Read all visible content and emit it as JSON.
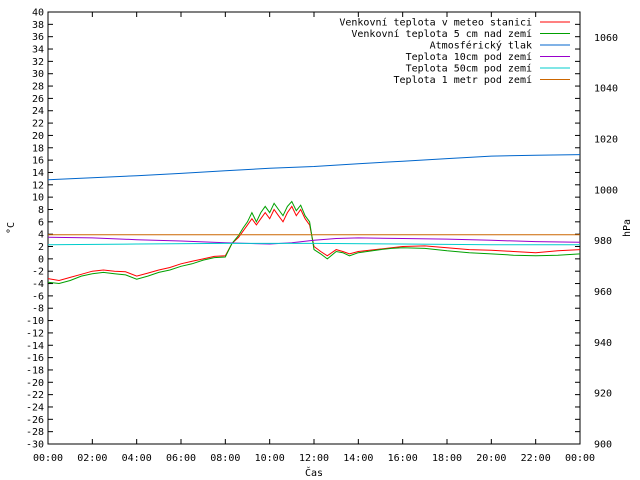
{
  "chart_data": {
    "type": "line",
    "xlabel": "Čas",
    "ylabel_left": "°C",
    "ylabel_right": "hPa",
    "x_ticks": [
      "00:00",
      "02:00",
      "04:00",
      "06:00",
      "08:00",
      "10:00",
      "12:00",
      "14:00",
      "16:00",
      "18:00",
      "20:00",
      "22:00",
      "00:00"
    ],
    "ylim_left": [
      -30,
      40
    ],
    "ylim_right": [
      900,
      1070
    ],
    "y_left_ticks": [
      40,
      38,
      36,
      34,
      32,
      30,
      28,
      26,
      24,
      22,
      20,
      18,
      16,
      14,
      12,
      10,
      8,
      6,
      4,
      2,
      0,
      -2,
      -4,
      -6,
      -8,
      -10,
      -12,
      -14,
      -16,
      -18,
      -20,
      -22,
      -24,
      -26,
      -28,
      -30
    ],
    "y_right_ticks": [
      1060,
      1040,
      1020,
      1000,
      980,
      960,
      940,
      920,
      900
    ],
    "legend_position": "top-right",
    "grid": false,
    "series": [
      {
        "name": "Venkovní teplota v meteo stanici",
        "color": "#ff0000",
        "axis": "left",
        "points": [
          [
            0,
            -3.2
          ],
          [
            0.5,
            -3.5
          ],
          [
            1,
            -3
          ],
          [
            1.5,
            -2.5
          ],
          [
            2,
            -2
          ],
          [
            2.5,
            -1.8
          ],
          [
            3,
            -2
          ],
          [
            3.5,
            -2.1
          ],
          [
            4,
            -2.8
          ],
          [
            4.5,
            -2.3
          ],
          [
            5,
            -1.8
          ],
          [
            5.5,
            -1.4
          ],
          [
            6,
            -0.8
          ],
          [
            6.5,
            -0.4
          ],
          [
            7,
            0
          ],
          [
            7.5,
            0.4
          ],
          [
            8,
            0.5
          ],
          [
            8.3,
            2.5
          ],
          [
            8.6,
            3.5
          ],
          [
            8.8,
            4.5
          ],
          [
            9,
            5.5
          ],
          [
            9.2,
            6.5
          ],
          [
            9.4,
            5.5
          ],
          [
            9.6,
            6.5
          ],
          [
            9.8,
            7.5
          ],
          [
            10,
            6.5
          ],
          [
            10.2,
            8
          ],
          [
            10.4,
            7
          ],
          [
            10.6,
            6
          ],
          [
            10.8,
            7.5
          ],
          [
            11,
            8.5
          ],
          [
            11.2,
            7
          ],
          [
            11.4,
            8
          ],
          [
            11.6,
            6.5
          ],
          [
            11.8,
            5.5
          ],
          [
            12,
            2
          ],
          [
            12.3,
            1.2
          ],
          [
            12.6,
            0.5
          ],
          [
            13,
            1.5
          ],
          [
            13.3,
            1.2
          ],
          [
            13.6,
            0.8
          ],
          [
            14,
            1.2
          ],
          [
            15,
            1.6
          ],
          [
            15.5,
            1.8
          ],
          [
            16,
            2
          ],
          [
            17,
            2.1
          ],
          [
            18,
            1.8
          ],
          [
            19,
            1.5
          ],
          [
            20,
            1.4
          ],
          [
            21,
            1.2
          ],
          [
            22,
            1
          ],
          [
            23,
            1.3
          ],
          [
            24,
            1.5
          ]
        ]
      },
      {
        "name": "Venkovní teplota 5 cm nad zemí",
        "color": "#00a000",
        "axis": "left",
        "points": [
          [
            0,
            -3.8
          ],
          [
            0.5,
            -4
          ],
          [
            1,
            -3.5
          ],
          [
            1.5,
            -2.8
          ],
          [
            2,
            -2.4
          ],
          [
            2.5,
            -2.2
          ],
          [
            3,
            -2.4
          ],
          [
            3.5,
            -2.6
          ],
          [
            4,
            -3.3
          ],
          [
            4.5,
            -2.8
          ],
          [
            5,
            -2.2
          ],
          [
            5.5,
            -1.8
          ],
          [
            6,
            -1.2
          ],
          [
            6.5,
            -0.8
          ],
          [
            7,
            -0.2
          ],
          [
            7.5,
            0.2
          ],
          [
            8,
            0.3
          ],
          [
            8.3,
            2.5
          ],
          [
            8.6,
            3.8
          ],
          [
            8.8,
            5
          ],
          [
            9,
            6
          ],
          [
            9.2,
            7.5
          ],
          [
            9.4,
            6
          ],
          [
            9.6,
            7.5
          ],
          [
            9.8,
            8.5
          ],
          [
            10,
            7.5
          ],
          [
            10.2,
            9
          ],
          [
            10.4,
            8
          ],
          [
            10.6,
            7
          ],
          [
            10.8,
            8.5
          ],
          [
            11,
            9.3
          ],
          [
            11.2,
            7.8
          ],
          [
            11.4,
            8.7
          ],
          [
            11.6,
            7
          ],
          [
            11.8,
            6
          ],
          [
            12,
            1.5
          ],
          [
            12.3,
            0.8
          ],
          [
            12.6,
            0
          ],
          [
            13,
            1.2
          ],
          [
            13.3,
            1
          ],
          [
            13.6,
            0.5
          ],
          [
            14,
            1
          ],
          [
            15,
            1.5
          ],
          [
            15.5,
            1.7
          ],
          [
            16,
            1.8
          ],
          [
            17,
            1.7
          ],
          [
            18,
            1.3
          ],
          [
            19,
            1
          ],
          [
            20,
            0.8
          ],
          [
            21,
            0.6
          ],
          [
            22,
            0.5
          ],
          [
            23,
            0.6
          ],
          [
            24,
            0.8
          ]
        ]
      },
      {
        "name": "Atmosférický tlak",
        "color": "#0066cc",
        "axis": "right",
        "points": [
          [
            0,
            1004
          ],
          [
            2,
            1004.8
          ],
          [
            4,
            1005.6
          ],
          [
            6,
            1006.5
          ],
          [
            8,
            1007.5
          ],
          [
            10,
            1008.5
          ],
          [
            12,
            1009.2
          ],
          [
            14,
            1010.3
          ],
          [
            16,
            1011.3
          ],
          [
            18,
            1012.3
          ],
          [
            20,
            1013.3
          ],
          [
            22,
            1013.6
          ],
          [
            24,
            1013.9
          ]
        ]
      },
      {
        "name": "Teplota 10cm pod zemí",
        "color": "#9900cc",
        "axis": "left",
        "points": [
          [
            0,
            3.5
          ],
          [
            2,
            3.4
          ],
          [
            4,
            3.1
          ],
          [
            6,
            2.9
          ],
          [
            8,
            2.6
          ],
          [
            10,
            2.4
          ],
          [
            11,
            2.6
          ],
          [
            12,
            3
          ],
          [
            13,
            3.3
          ],
          [
            14,
            3.4
          ],
          [
            16,
            3.3
          ],
          [
            18,
            3.2
          ],
          [
            20,
            3
          ],
          [
            22,
            2.8
          ],
          [
            24,
            2.7
          ]
        ]
      },
      {
        "name": "Teplota 50cm pod zemí",
        "color": "#00cccc",
        "axis": "left",
        "points": [
          [
            0,
            2.3
          ],
          [
            4,
            2.4
          ],
          [
            8,
            2.5
          ],
          [
            12,
            2.5
          ],
          [
            16,
            2.4
          ],
          [
            20,
            2.3
          ],
          [
            24,
            2.3
          ]
        ]
      },
      {
        "name": "Teplota 1 metr pod zemí",
        "color": "#cc6600",
        "axis": "left",
        "points": [
          [
            0,
            3.9
          ],
          [
            6,
            3.9
          ],
          [
            12,
            3.9
          ],
          [
            18,
            3.9
          ],
          [
            24,
            3.9
          ]
        ]
      }
    ]
  }
}
